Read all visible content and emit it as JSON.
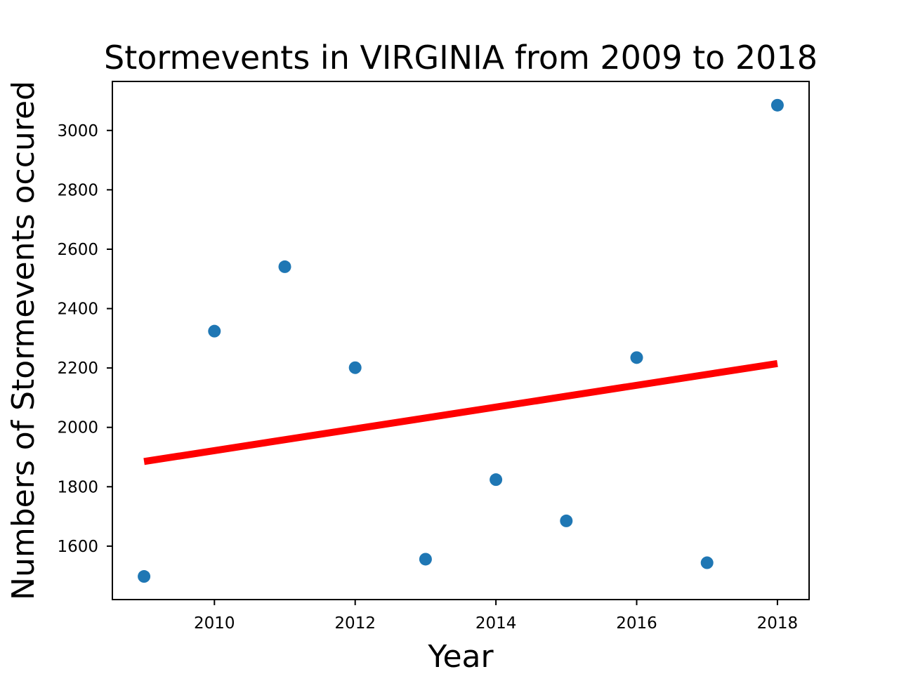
{
  "chart_data": {
    "type": "scatter",
    "title": "Stormevents in VIRGINIA from 2009 to 2018",
    "xlabel": "Year",
    "ylabel": "Numbers of Stormevents occured",
    "xlim": [
      2008.55,
      2018.45
    ],
    "ylim": [
      1420,
      3165
    ],
    "xticks": [
      2010,
      2012,
      2014,
      2016,
      2018
    ],
    "yticks": [
      1600,
      1800,
      2000,
      2200,
      2400,
      2600,
      2800,
      3000
    ],
    "grid": false,
    "series": [
      {
        "kind": "points",
        "color": "#1f77b4",
        "x": [
          2009,
          2010,
          2011,
          2012,
          2013,
          2014,
          2015,
          2016,
          2017,
          2018
        ],
        "y": [
          1498,
          2324,
          2541,
          2201,
          1556,
          1824,
          1685,
          2235,
          1544,
          3085
        ]
      },
      {
        "kind": "trend-line",
        "color": "#ff0000",
        "x": [
          2009,
          2018
        ],
        "y": [
          1885,
          2215
        ]
      }
    ]
  }
}
